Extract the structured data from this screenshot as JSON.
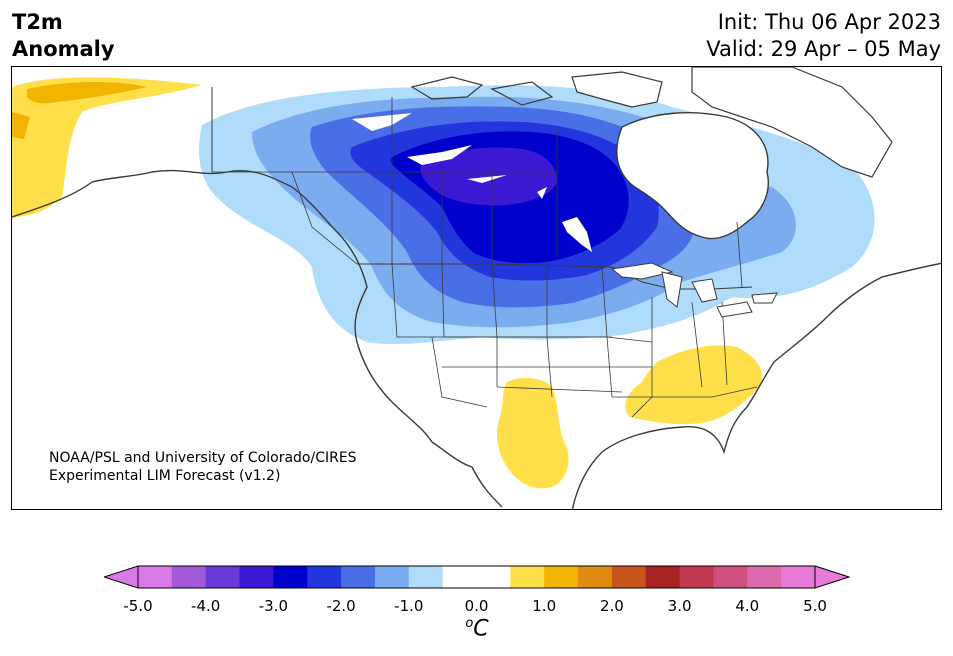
{
  "title": {
    "line1": "T2m",
    "line2": "Anomaly",
    "init": "Init: Thu 06 Apr 2023",
    "valid": "Valid: 29 Apr – 05 May"
  },
  "credit": {
    "line1": "NOAA/PSL and University of Colorado/CIRES",
    "line2": "Experimental LIM Forecast (v1.2)"
  },
  "colorbar": {
    "unit_base": "C",
    "unit_sup": "o",
    "tick_labels": [
      "-5.0",
      "-4.0",
      "-3.0",
      "-2.0",
      "-1.0",
      "0.0",
      "1.0",
      "2.0",
      "3.0",
      "4.0",
      "5.0"
    ],
    "colors": [
      "#d77ae6",
      "#a25ad9",
      "#6a3ad8",
      "#3b18d4",
      "#0000cc",
      "#2236dd",
      "#4a6ee6",
      "#7cacf0",
      "#afdcfa",
      "#ffffff",
      "#ffffff",
      "#ffe04a",
      "#f2b400",
      "#e08a10",
      "#c8561a",
      "#a82222",
      "#c23a52",
      "#d05080",
      "#de6aae",
      "#e87ad8"
    ]
  },
  "map": {
    "region": "North America",
    "anomaly_features": [
      {
        "name": "cold-anomaly-core",
        "min_value": -3.5
      },
      {
        "name": "warm-anomaly-alaska",
        "max_value": 1.5
      },
      {
        "name": "warm-anomaly-southeast",
        "max_value": 1.0
      },
      {
        "name": "warm-anomaly-southwest",
        "max_value": 1.0
      }
    ]
  }
}
